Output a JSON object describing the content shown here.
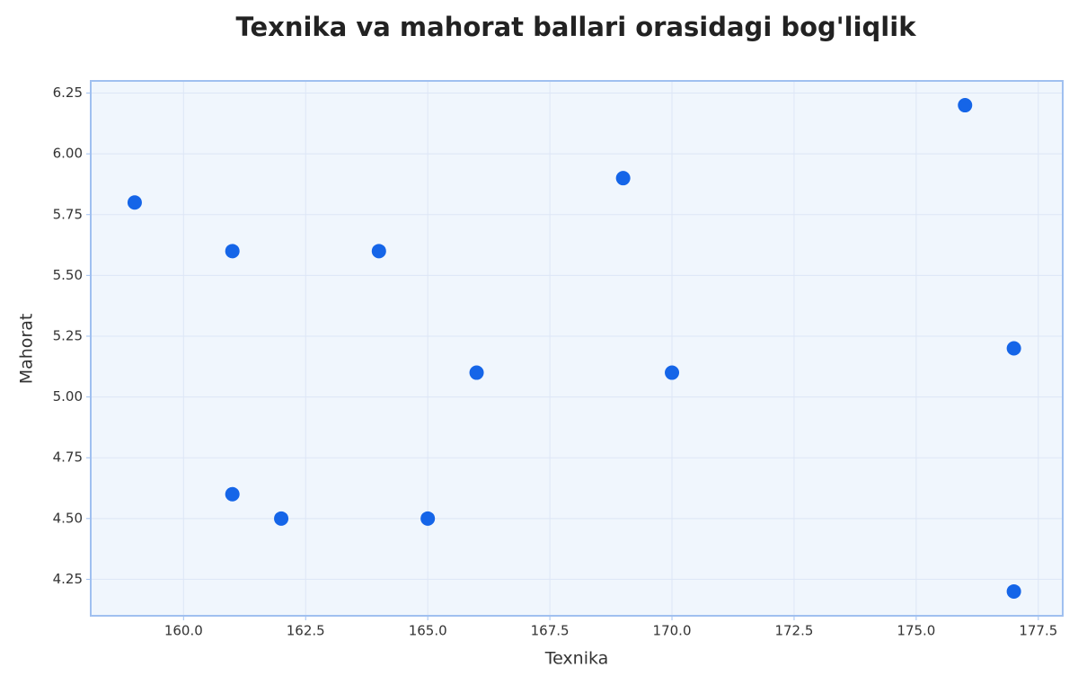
{
  "chart_data": {
    "type": "scatter",
    "title": "Texnika va mahorat ballari orasidagi bog'liqlik",
    "x_label": "Texnika",
    "y_label": "Mahorat",
    "color": "#1565e8",
    "grid": true,
    "x": [
      159,
      161,
      164,
      169,
      176,
      177,
      166,
      170,
      161,
      162,
      165,
      177
    ],
    "values": [
      5.8,
      5.6,
      5.6,
      5.9,
      6.2,
      5.2,
      5.1,
      5.1,
      4.6,
      4.5,
      4.5,
      4.2
    ],
    "xlim": [
      158.1,
      178.0
    ],
    "ylim": [
      4.1,
      6.3
    ],
    "xticks": [
      {
        "value": 160,
        "label": "160.0"
      },
      162.5,
      {
        "value": 165,
        "label": "165.0"
      },
      167.5,
      {
        "value": 170,
        "label": "170.0"
      },
      172.5,
      {
        "value": 175,
        "label": "175.0"
      },
      177.5
    ],
    "yticks": [
      4.25,
      {
        "value": 4.5,
        "label": "4.50"
      },
      4.75,
      {
        "value": 5,
        "label": "5.00"
      },
      5.25,
      {
        "value": 5.5,
        "label": "5.50"
      },
      5.75,
      {
        "value": 6,
        "label": "6.00"
      },
      6.25
    ]
  }
}
